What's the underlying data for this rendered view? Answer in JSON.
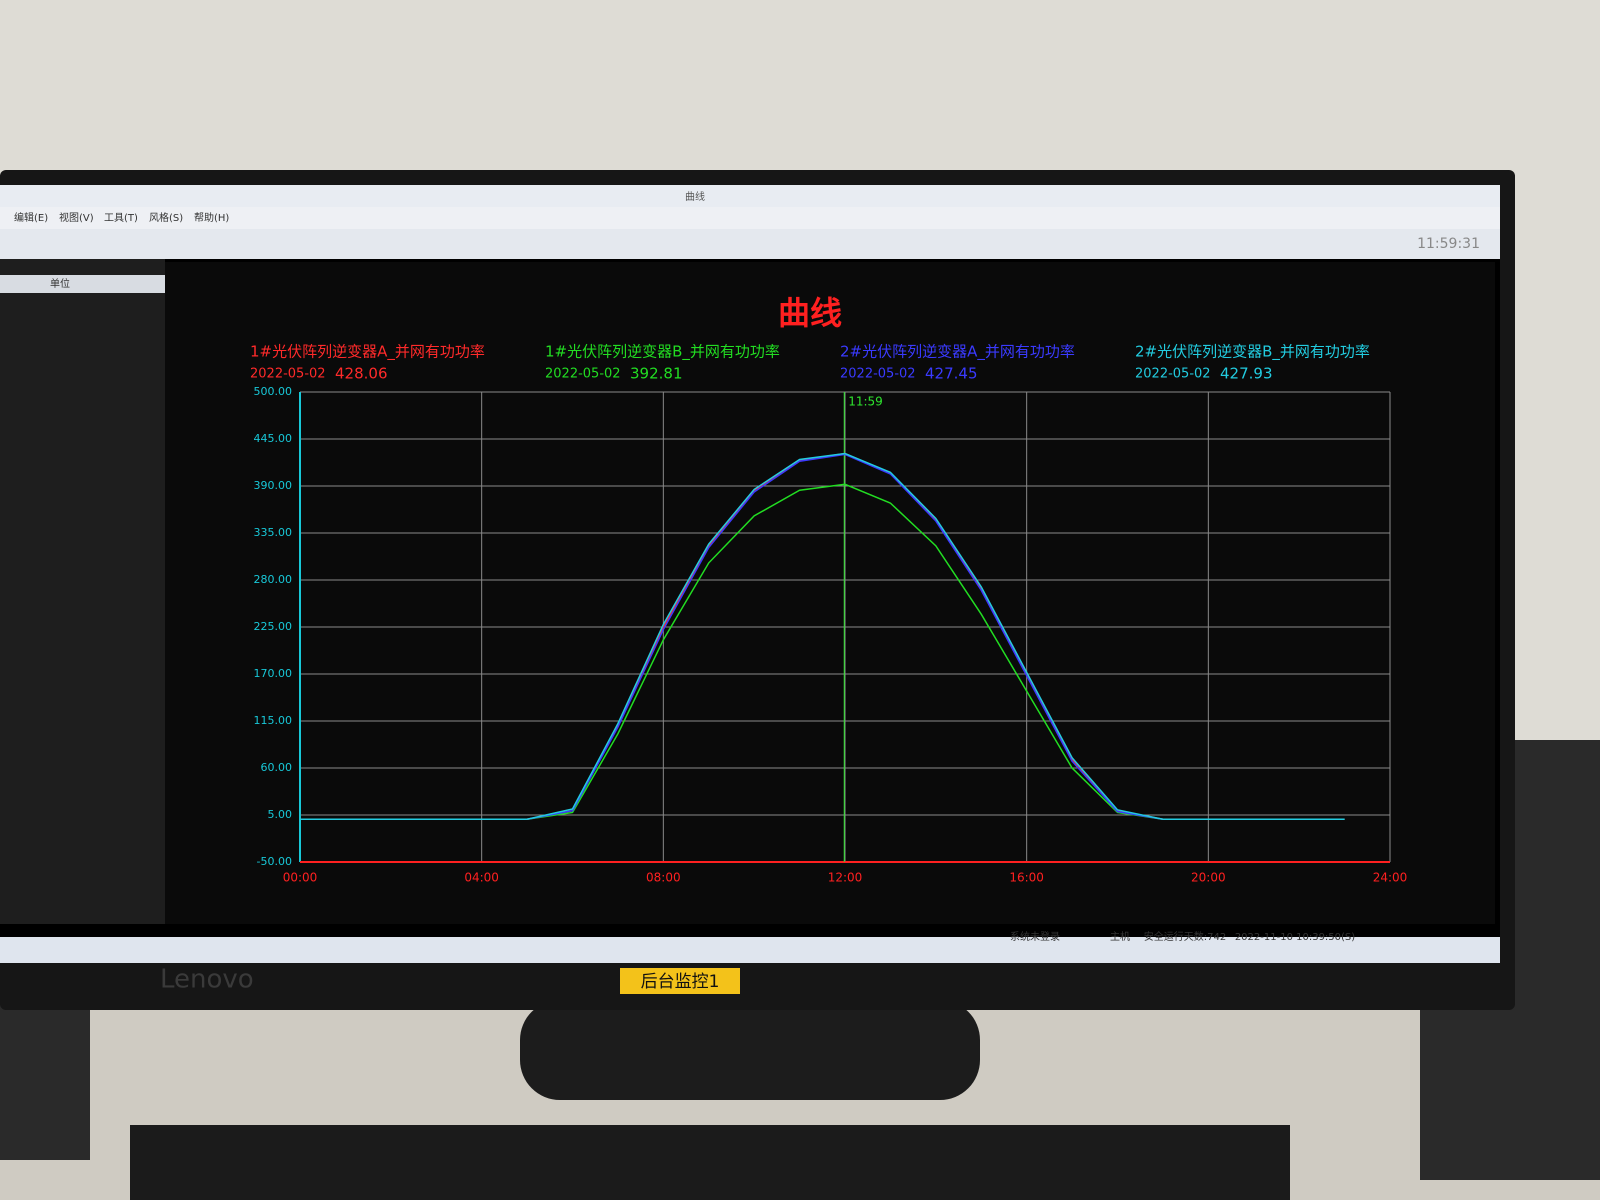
{
  "window": {
    "title": "曲线",
    "menu": [
      "编辑(E)",
      "视图(V)",
      "工具(T)",
      "风格(S)",
      "帮助(H)"
    ],
    "clock": "11:59:31",
    "panel_header": "单位"
  },
  "chart_data": {
    "type": "line",
    "title": "曲线",
    "cursor": "11:59",
    "x": [
      "00:00",
      "01:00",
      "02:00",
      "03:00",
      "04:00",
      "05:00",
      "06:00",
      "07:00",
      "08:00",
      "09:00",
      "10:00",
      "11:00",
      "12:00",
      "13:00",
      "14:00",
      "15:00",
      "16:00",
      "17:00",
      "18:00",
      "19:00",
      "20:00",
      "21:00",
      "22:00",
      "23:00"
    ],
    "xticks": [
      "00:00",
      "04:00",
      "08:00",
      "12:00",
      "16:00",
      "20:00",
      "24:00"
    ],
    "ylim": [
      -50,
      500
    ],
    "yticks": [
      {
        "value": -50,
        "label": "-50.00"
      },
      {
        "value": 5,
        "label": "5.00"
      },
      {
        "value": 60,
        "label": "60.00"
      },
      {
        "value": 115,
        "label": "115.00"
      },
      {
        "value": 170,
        "label": "170.00"
      },
      {
        "value": 225,
        "label": "225.00"
      },
      {
        "value": 280,
        "label": "280.00"
      },
      {
        "value": 335,
        "label": "335.00"
      },
      {
        "value": 390,
        "label": "390.00"
      },
      {
        "value": 445,
        "label": "445.00"
      },
      {
        "value": 500,
        "label": "500.00"
      }
    ],
    "grid": true,
    "series": [
      {
        "name": "1#光伏阵列逆变器A_并网有功功率",
        "color": "#ff2a2a",
        "date": "2022-05-02",
        "cursor_value": 428.06,
        "values": [
          0,
          0,
          0,
          0,
          0,
          0,
          10,
          110,
          225,
          320,
          385,
          420,
          428,
          405,
          350,
          270,
          170,
          70,
          10,
          0,
          0,
          0,
          0,
          0
        ]
      },
      {
        "name": "1#光伏阵列逆变器B_并网有功功率",
        "color": "#22dd22",
        "date": "2022-05-02",
        "cursor_value": 392.81,
        "values": [
          0,
          0,
          0,
          0,
          0,
          0,
          8,
          100,
          210,
          300,
          355,
          385,
          392,
          370,
          320,
          240,
          150,
          60,
          8,
          0,
          0,
          0,
          0,
          0
        ]
      },
      {
        "name": "2#光伏阵列逆变器A_并网有功功率",
        "color": "#3a3aff",
        "date": "2022-05-02",
        "cursor_value": 427.45,
        "values": [
          0,
          0,
          0,
          0,
          0,
          0,
          10,
          108,
          222,
          318,
          383,
          419,
          427,
          404,
          349,
          268,
          168,
          68,
          9,
          0,
          0,
          0,
          0,
          0
        ]
      },
      {
        "name": "2#光伏阵列逆变器B_并网有功功率",
        "color": "#22cce0",
        "date": "2022-05-02",
        "cursor_value": 427.93,
        "values": [
          0,
          0,
          0,
          0,
          0,
          0,
          12,
          112,
          228,
          322,
          386,
          421,
          428,
          406,
          352,
          272,
          172,
          72,
          11,
          0,
          0,
          0,
          0,
          0
        ]
      }
    ]
  },
  "status": {
    "login": "系统未登录",
    "host": "主机",
    "safe_days": "安全运行天数:742",
    "datetime": "2022-11-10 10:39:50(S)"
  },
  "monitor": {
    "brand": "Lenovo",
    "sticker": "后台监控1"
  }
}
